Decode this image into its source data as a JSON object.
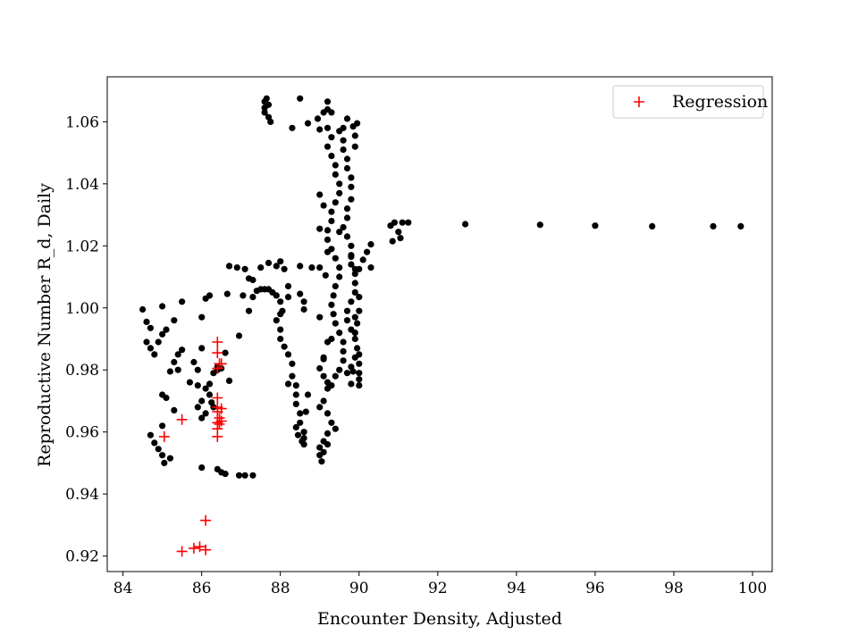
{
  "chart_data": {
    "type": "scatter",
    "xlabel": "Encounter Density, Adjusted",
    "ylabel": "Reproductive Number R_d, Daily",
    "xlim": [
      83.6,
      100.5
    ],
    "ylim": [
      0.915,
      1.0745
    ],
    "xticks": [
      84,
      86,
      88,
      90,
      92,
      94,
      96,
      98,
      100
    ],
    "yticks": [
      0.92,
      0.94,
      0.96,
      0.98,
      1.0,
      1.02,
      1.04,
      1.06
    ],
    "xtick_labels": [
      "84",
      "86",
      "88",
      "90",
      "92",
      "94",
      "96",
      "98",
      "100"
    ],
    "ytick_labels": [
      "0.92",
      "0.94",
      "0.96",
      "0.98",
      "1.00",
      "1.02",
      "1.04",
      "1.06"
    ],
    "grid": false,
    "legend": {
      "position": "top-right",
      "entries": [
        "Regression"
      ]
    },
    "series": [
      {
        "marker": "dot",
        "color": "#000000",
        "points": [
          [
            84.5,
            0.9995
          ],
          [
            84.6,
            0.9955
          ],
          [
            84.7,
            0.9935
          ],
          [
            84.6,
            0.989
          ],
          [
            84.7,
            0.987
          ],
          [
            84.8,
            0.985
          ],
          [
            84.9,
            0.989
          ],
          [
            85.0,
            0.9915
          ],
          [
            85.1,
            0.993
          ],
          [
            85.0,
            1.0005
          ],
          [
            85.3,
            0.996
          ],
          [
            85.5,
            1.002
          ],
          [
            85.2,
            0.9795
          ],
          [
            85.4,
            0.985
          ],
          [
            85.5,
            0.9865
          ],
          [
            85.3,
            0.9825
          ],
          [
            85.4,
            0.98
          ],
          [
            85.0,
            0.972
          ],
          [
            85.1,
            0.971
          ],
          [
            85.3,
            0.967
          ],
          [
            85.0,
            0.962
          ],
          [
            84.7,
            0.959
          ],
          [
            84.8,
            0.9565
          ],
          [
            84.9,
            0.9545
          ],
          [
            85.0,
            0.9525
          ],
          [
            85.05,
            0.95
          ],
          [
            85.2,
            0.9515
          ],
          [
            85.7,
            0.976
          ],
          [
            85.8,
            0.9825
          ],
          [
            85.9,
            0.98
          ],
          [
            85.9,
            0.975
          ],
          [
            86.0,
            0.97
          ],
          [
            85.9,
            0.968
          ],
          [
            86.1,
            0.966
          ],
          [
            86.0,
            0.9645
          ],
          [
            86.3,
            0.968
          ],
          [
            86.1,
            0.974
          ],
          [
            86.2,
            0.972
          ],
          [
            86.25,
            0.9695
          ],
          [
            86.4,
            0.981
          ],
          [
            86.5,
            0.9805
          ],
          [
            86.6,
            0.9855
          ],
          [
            86.3,
            0.979
          ],
          [
            86.2,
            0.9755
          ],
          [
            86.0,
            0.987
          ],
          [
            86.0,
            0.997
          ],
          [
            86.1,
            1.003
          ],
          [
            86.2,
            1.004
          ],
          [
            86.4,
            0.98
          ],
          [
            86.7,
            0.9765
          ],
          [
            86.0,
            0.9485
          ],
          [
            86.4,
            0.948
          ],
          [
            86.5,
            0.947
          ],
          [
            86.6,
            0.9465
          ],
          [
            86.95,
            0.946
          ],
          [
            87.1,
            0.946
          ],
          [
            87.3,
            0.946
          ],
          [
            86.7,
            1.0135
          ],
          [
            86.9,
            1.013
          ],
          [
            87.1,
            1.0125
          ],
          [
            87.2,
            1.0095
          ],
          [
            87.05,
            1.004
          ],
          [
            86.65,
            1.0045
          ],
          [
            86.95,
            0.991
          ],
          [
            87.6,
            1.0665
          ],
          [
            87.65,
            1.0675
          ],
          [
            87.7,
            1.0655
          ],
          [
            87.6,
            1.063
          ],
          [
            87.7,
            1.0615
          ],
          [
            87.75,
            1.06
          ],
          [
            87.6,
            1.0645
          ],
          [
            88.3,
            1.058
          ],
          [
            88.5,
            1.0675
          ],
          [
            88.7,
            1.0595
          ],
          [
            88.95,
            1.061
          ],
          [
            89.1,
            1.063
          ],
          [
            89.2,
            1.064
          ],
          [
            87.3,
            1.0035
          ],
          [
            87.4,
            1.0055
          ],
          [
            87.5,
            1.006
          ],
          [
            87.6,
            1.006
          ],
          [
            87.7,
            1.006
          ],
          [
            87.8,
            1.005
          ],
          [
            87.9,
            1.004
          ],
          [
            88.0,
            1.002
          ],
          [
            88.05,
            0.999
          ],
          [
            87.3,
            1.009
          ],
          [
            87.2,
            0.999
          ],
          [
            87.5,
            1.013
          ],
          [
            87.7,
            1.0145
          ],
          [
            87.9,
            1.0135
          ],
          [
            88.0,
            1.015
          ],
          [
            88.1,
            1.0125
          ],
          [
            88.2,
            1.007
          ],
          [
            88.2,
            1.0035
          ],
          [
            87.9,
            0.996
          ],
          [
            88.0,
            0.993
          ],
          [
            88.0,
            0.99
          ],
          [
            88.1,
            0.9875
          ],
          [
            88.2,
            0.985
          ],
          [
            88.3,
            0.982
          ],
          [
            88.3,
            0.978
          ],
          [
            88.4,
            0.975
          ],
          [
            88.4,
            0.972
          ],
          [
            88.4,
            0.969
          ],
          [
            88.5,
            0.966
          ],
          [
            88.5,
            0.963
          ],
          [
            88.6,
            0.96
          ],
          [
            88.6,
            0.958
          ],
          [
            88.6,
            0.956
          ],
          [
            88.4,
            0.9615
          ],
          [
            88.45,
            0.959
          ],
          [
            88.55,
            0.957
          ],
          [
            88.65,
            0.9665
          ],
          [
            88.7,
            0.972
          ],
          [
            88.2,
            0.9755
          ],
          [
            88.0,
            0.998
          ],
          [
            88.5,
            1.0135
          ],
          [
            88.6,
            1.002
          ],
          [
            88.5,
            1.0045
          ],
          [
            88.6,
            0.9995
          ],
          [
            88.8,
            1.013
          ],
          [
            89.0,
            1.013
          ],
          [
            89.15,
            1.0105
          ],
          [
            89.0,
            0.997
          ],
          [
            89.1,
            0.9835
          ],
          [
            89.0,
            0.9805
          ],
          [
            89.1,
            0.978
          ],
          [
            89.2,
            0.974
          ],
          [
            89.1,
            0.97
          ],
          [
            89.0,
            0.968
          ],
          [
            89.2,
            0.966
          ],
          [
            89.3,
            0.963
          ],
          [
            89.4,
            0.961
          ],
          [
            89.2,
            0.9595
          ],
          [
            89.1,
            0.957
          ],
          [
            89.0,
            0.955
          ],
          [
            89.0,
            0.9525
          ],
          [
            89.05,
            0.9505
          ],
          [
            89.1,
            0.9535
          ],
          [
            89.2,
            0.956
          ],
          [
            89.2,
            1.058
          ],
          [
            89.3,
            1.055
          ],
          [
            89.2,
            1.052
          ],
          [
            89.3,
            1.049
          ],
          [
            89.4,
            1.046
          ],
          [
            89.4,
            1.043
          ],
          [
            89.5,
            1.04
          ],
          [
            89.5,
            1.037
          ],
          [
            89.4,
            1.034
          ],
          [
            89.3,
            1.031
          ],
          [
            89.3,
            1.028
          ],
          [
            89.2,
            1.025
          ],
          [
            89.2,
            1.022
          ],
          [
            89.3,
            1.019
          ],
          [
            89.4,
            1.016
          ],
          [
            89.5,
            1.013
          ],
          [
            89.5,
            1.01
          ],
          [
            89.4,
            1.007
          ],
          [
            89.35,
            1.004
          ],
          [
            89.3,
            1.001
          ],
          [
            89.35,
            0.998
          ],
          [
            89.4,
            0.995
          ],
          [
            89.5,
            0.992
          ],
          [
            89.6,
            0.989
          ],
          [
            89.6,
            0.986
          ],
          [
            89.6,
            0.983
          ],
          [
            89.5,
            0.98
          ],
          [
            89.4,
            0.978
          ],
          [
            89.3,
            0.975
          ],
          [
            89.2,
            0.976
          ],
          [
            89.1,
            0.984
          ],
          [
            89.2,
            0.989
          ],
          [
            89.3,
            0.99
          ],
          [
            89.5,
            1.057
          ],
          [
            89.6,
            1.054
          ],
          [
            89.6,
            1.051
          ],
          [
            89.7,
            1.048
          ],
          [
            89.7,
            1.045
          ],
          [
            89.8,
            1.042
          ],
          [
            89.8,
            1.039
          ],
          [
            89.8,
            1.035
          ],
          [
            89.7,
            1.032
          ],
          [
            89.7,
            1.029
          ],
          [
            89.6,
            1.026
          ],
          [
            89.7,
            1.023
          ],
          [
            89.8,
            1.02
          ],
          [
            89.8,
            1.017
          ],
          [
            89.8,
            1.014
          ],
          [
            89.9,
            1.011
          ],
          [
            89.9,
            1.008
          ],
          [
            89.9,
            1.005
          ],
          [
            89.8,
            1.002
          ],
          [
            89.7,
            0.999
          ],
          [
            89.7,
            0.996
          ],
          [
            89.8,
            0.993
          ],
          [
            89.9,
            0.99
          ],
          [
            89.95,
            0.987
          ],
          [
            89.9,
            0.984
          ],
          [
            89.8,
            0.981
          ],
          [
            89.7,
            0.979
          ],
          [
            89.0,
            1.0575
          ],
          [
            89.2,
            1.0665
          ],
          [
            89.3,
            1.063
          ],
          [
            89.6,
            1.058
          ],
          [
            89.7,
            1.061
          ],
          [
            89.85,
            1.0585
          ],
          [
            89.95,
            1.0595
          ],
          [
            89.9,
            1.0555
          ],
          [
            89.9,
            1.052
          ],
          [
            89.5,
            1.0245
          ],
          [
            89.2,
            1.018
          ],
          [
            89.1,
            1.033
          ],
          [
            89.0,
            1.0365
          ],
          [
            89.0,
            1.0255
          ],
          [
            89.8,
            1.0165
          ],
          [
            89.9,
            1.0125
          ],
          [
            90.0,
            1.0125
          ],
          [
            90.1,
            1.0155
          ],
          [
            90.2,
            1.018
          ],
          [
            90.3,
            1.0205
          ],
          [
            90.3,
            1.013
          ],
          [
            90.0,
            1.0035
          ],
          [
            90.0,
            0.999
          ],
          [
            89.9,
            0.997
          ],
          [
            89.95,
            0.995
          ],
          [
            89.9,
            0.992
          ],
          [
            90.0,
            0.985
          ],
          [
            90.0,
            0.982
          ],
          [
            90.0,
            0.979
          ],
          [
            90.0,
            0.977
          ],
          [
            90.0,
            0.975
          ],
          [
            89.85,
            0.9795
          ],
          [
            89.8,
            0.9755
          ],
          [
            90.8,
            1.0265
          ],
          [
            90.9,
            1.0275
          ],
          [
            91.0,
            1.0245
          ],
          [
            91.05,
            1.0225
          ],
          [
            90.85,
            1.0215
          ],
          [
            91.1,
            1.0275
          ],
          [
            91.25,
            1.0275
          ],
          [
            92.7,
            1.027
          ],
          [
            94.6,
            1.0268
          ],
          [
            96.0,
            1.0265
          ],
          [
            97.45,
            1.0263
          ],
          [
            99.0,
            1.0263
          ],
          [
            99.7,
            1.0263
          ]
        ]
      },
      {
        "name": "Regression",
        "marker": "plus",
        "color": "#ff0000",
        "points": [
          [
            85.05,
            0.9585
          ],
          [
            85.5,
            0.964
          ],
          [
            85.5,
            0.9215
          ],
          [
            85.8,
            0.9225
          ],
          [
            86.1,
            0.9315
          ],
          [
            85.95,
            0.923
          ],
          [
            86.1,
            0.922
          ],
          [
            86.4,
            0.989
          ],
          [
            86.4,
            0.9855
          ],
          [
            86.45,
            0.982
          ],
          [
            86.4,
            0.9805
          ],
          [
            86.4,
            0.971
          ],
          [
            86.4,
            0.968
          ],
          [
            86.4,
            0.9665
          ],
          [
            86.45,
            0.9645
          ],
          [
            86.4,
            0.963
          ],
          [
            86.45,
            0.9625
          ],
          [
            86.4,
            0.961
          ],
          [
            86.4,
            0.9585
          ],
          [
            86.5,
            0.982
          ],
          [
            86.5,
            0.9675
          ],
          [
            86.5,
            0.9635
          ]
        ]
      }
    ]
  }
}
